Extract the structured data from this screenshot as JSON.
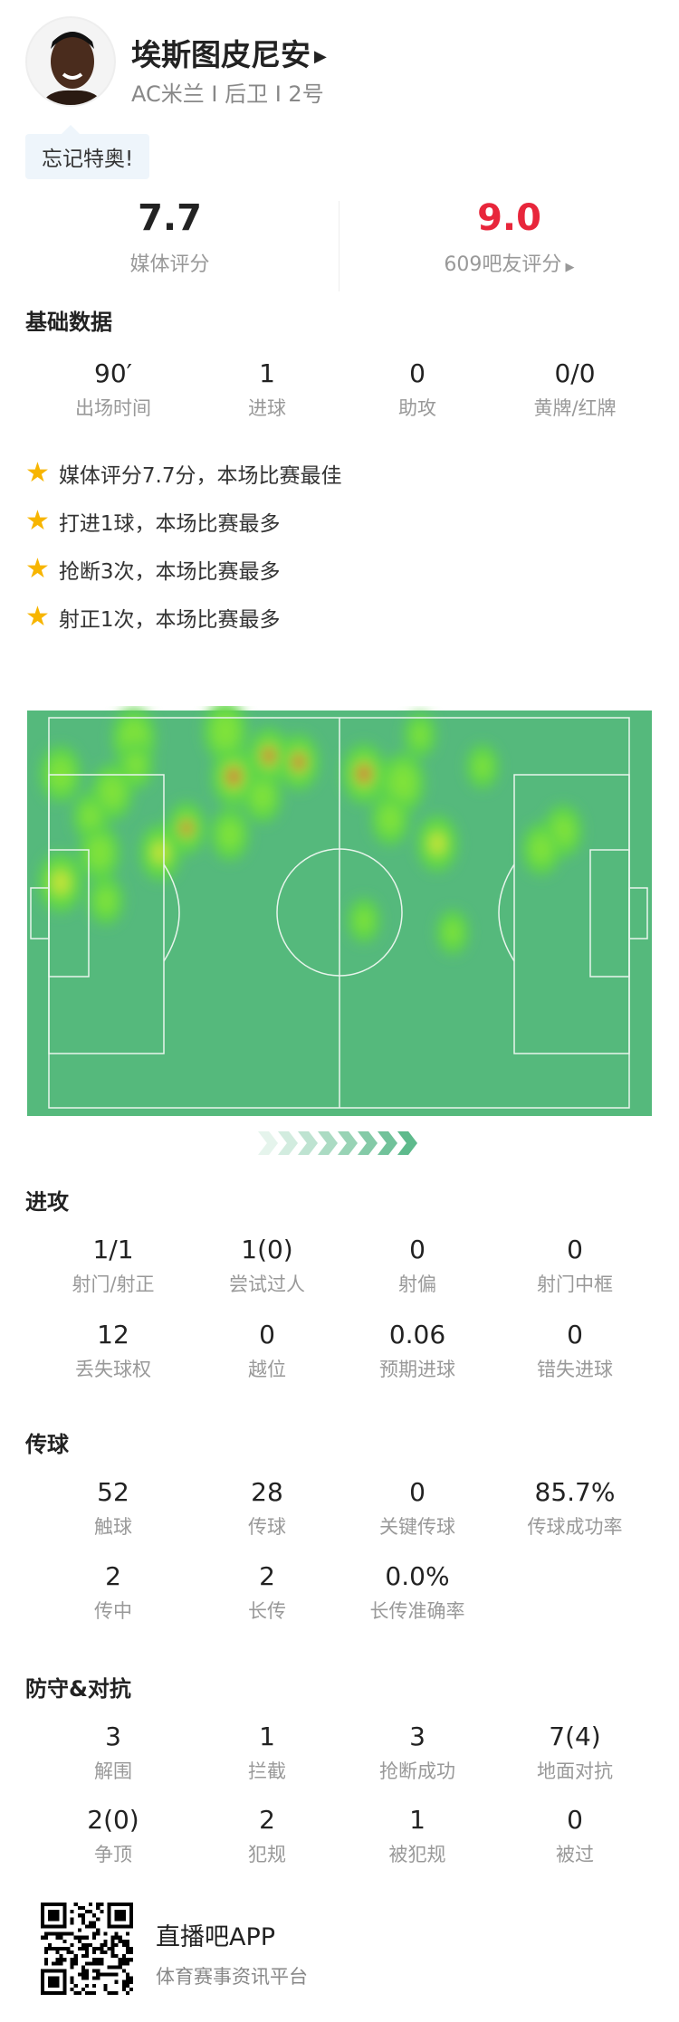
{
  "player": {
    "name": "埃斯图皮尼安",
    "info": "AC米兰 I 后卫 I 2号",
    "comment": "忘记特奥!"
  },
  "ratings": {
    "media": {
      "value": "7.7",
      "label": "媒体评分"
    },
    "fans": {
      "value": "9.0",
      "label": "609吧友评分",
      "color": "#e8263b"
    }
  },
  "basic": {
    "title": "基础数据",
    "stats": [
      {
        "v": "90′",
        "l": "出场时间"
      },
      {
        "v": "1",
        "l": "进球"
      },
      {
        "v": "0",
        "l": "助攻"
      },
      {
        "v": "0/0",
        "l": "黄牌/红牌"
      }
    ]
  },
  "highlights": [
    "媒体评分7.7分，本场比赛最佳",
    "打进1球，本场比赛最多",
    "抢断3次，本场比赛最多",
    "射正1次，本场比赛最多"
  ],
  "attack": {
    "title": "进攻",
    "stats": [
      {
        "v": "1/1",
        "l": "射门/射正"
      },
      {
        "v": "1(0)",
        "l": "尝试过人"
      },
      {
        "v": "0",
        "l": "射偏"
      },
      {
        "v": "0",
        "l": "射门中框"
      },
      {
        "v": "12",
        "l": "丢失球权"
      },
      {
        "v": "0",
        "l": "越位"
      },
      {
        "v": "0.06",
        "l": "预期进球"
      },
      {
        "v": "0",
        "l": "错失进球"
      }
    ]
  },
  "passing": {
    "title": "传球",
    "stats": [
      {
        "v": "52",
        "l": "触球"
      },
      {
        "v": "28",
        "l": "传球"
      },
      {
        "v": "0",
        "l": "关键传球"
      },
      {
        "v": "85.7%",
        "l": "传球成功率"
      },
      {
        "v": "2",
        "l": "传中"
      },
      {
        "v": "2",
        "l": "长传"
      },
      {
        "v": "0.0%",
        "l": "长传准确率"
      }
    ]
  },
  "defense": {
    "title": "防守&对抗",
    "stats": [
      {
        "v": "3",
        "l": "解围"
      },
      {
        "v": "1",
        "l": "拦截"
      },
      {
        "v": "3",
        "l": "抢断成功"
      },
      {
        "v": "7(4)",
        "l": "地面对抗"
      },
      {
        "v": "2(0)",
        "l": "争顶"
      },
      {
        "v": "2",
        "l": "犯规"
      },
      {
        "v": "1",
        "l": "被犯规"
      },
      {
        "v": "0",
        "l": "被过"
      }
    ]
  },
  "footer": {
    "app": "直播吧APP",
    "slogan": "体育赛事资讯平台"
  },
  "colors": {
    "pitch": "#55b97c",
    "accent": "#e8263b",
    "star": "#f7b500"
  },
  "icons": {
    "name_arrow": "triangle-right-icon",
    "star": "star-icon",
    "direction": "chevron-right-icon"
  }
}
